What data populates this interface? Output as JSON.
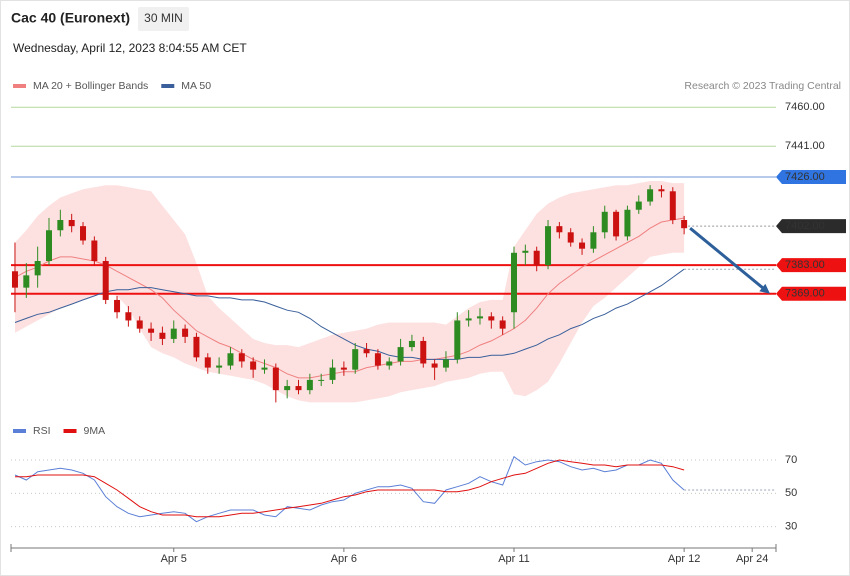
{
  "chart_data": [
    {
      "type": "candlestick",
      "title": "Cac 40 (Euronext)",
      "interval": "30 MIN",
      "subtitle": "Wednesday, April 12, 2023 8:04:55 AM CET",
      "credit": "Research © 2023 Trading Central",
      "x": [
        0,
        1,
        2,
        3,
        4,
        5,
        6,
        7,
        8,
        9,
        10,
        11,
        12,
        13,
        14,
        15,
        16,
        17,
        18,
        19,
        20,
        21,
        22,
        23,
        24,
        25,
        26,
        27,
        28,
        29,
        30,
        31,
        32,
        33,
        34,
        35,
        36,
        37,
        38,
        39,
        40,
        41,
        42,
        43,
        44,
        45,
        46,
        47,
        48,
        49,
        50,
        51,
        52,
        53,
        54,
        55,
        56,
        57,
        58,
        59
      ],
      "xlim": [
        -0.35,
        67.1
      ],
      "ylim": [
        7305,
        7465
      ],
      "up_color": "#2e8b22",
      "down_color": "#cc1111",
      "open": [
        7380,
        7372,
        7378,
        7385,
        7400,
        7405,
        7402,
        7395,
        7385,
        7366,
        7360,
        7356,
        7352,
        7350,
        7347,
        7352,
        7348,
        7338,
        7333,
        7334,
        7340,
        7336,
        7332,
        7333,
        7322,
        7324,
        7322,
        7327,
        7327,
        7333,
        7332,
        7342,
        7340,
        7334,
        7336,
        7343,
        7346,
        7335,
        7333,
        7337,
        7356,
        7357,
        7358,
        7356,
        7360,
        7389,
        7390,
        7383,
        7402,
        7399,
        7394,
        7391,
        7399,
        7409,
        7397,
        7410,
        7414,
        7420,
        7419,
        7405
      ],
      "high": [
        7394,
        7384,
        7392,
        7406,
        7410,
        7408,
        7404,
        7397,
        7387,
        7368,
        7363,
        7358,
        7355,
        7353,
        7356,
        7354,
        7350,
        7340,
        7338,
        7343,
        7342,
        7338,
        7337,
        7335,
        7327,
        7327,
        7330,
        7330,
        7337,
        7336,
        7345,
        7345,
        7342,
        7338,
        7347,
        7349,
        7348,
        7337,
        7341,
        7360,
        7361,
        7362,
        7360,
        7358,
        7392,
        7393,
        7392,
        7405,
        7404,
        7401,
        7396,
        7402,
        7412,
        7410,
        7412,
        7417,
        7422,
        7422,
        7421,
        7407
      ],
      "low": [
        7360,
        7367,
        7372,
        7383,
        7397,
        7399,
        7393,
        7383,
        7364,
        7357,
        7353,
        7350,
        7346,
        7344,
        7345,
        7345,
        7336,
        7330,
        7330,
        7332,
        7333,
        7328,
        7330,
        7316,
        7318,
        7320,
        7320,
        7324,
        7325,
        7329,
        7330,
        7338,
        7332,
        7332,
        7334,
        7341,
        7333,
        7327,
        7331,
        7335,
        7353,
        7354,
        7352,
        7349,
        7352,
        7383,
        7380,
        7381,
        7396,
        7392,
        7388,
        7389,
        7396,
        7395,
        7395,
        7408,
        7412,
        7416,
        7403,
        7398
      ],
      "close": [
        7372,
        7378,
        7385,
        7400,
        7405,
        7402,
        7395,
        7385,
        7366,
        7360,
        7356,
        7352,
        7350,
        7347,
        7352,
        7348,
        7338,
        7333,
        7334,
        7340,
        7336,
        7332,
        7333,
        7322,
        7324,
        7322,
        7327,
        7327,
        7333,
        7332,
        7342,
        7340,
        7334,
        7336,
        7343,
        7346,
        7335,
        7333,
        7337,
        7356,
        7357,
        7358,
        7356,
        7352,
        7389,
        7390,
        7383,
        7402,
        7399,
        7394,
        7391,
        7399,
        7409,
        7397,
        7410,
        7414,
        7420,
        7419,
        7405,
        7401
      ],
      "series": [
        {
          "name": "MA 20 + Bollinger Bands",
          "color": "#f08080",
          "band_color": "#fde1e1",
          "values": [
            7377,
            7380,
            7382,
            7385,
            7387,
            7387,
            7386,
            7385,
            7383,
            7380,
            7377,
            7374,
            7371,
            7367,
            7361,
            7356,
            7351,
            7348,
            7345,
            7343,
            7340,
            7337,
            7335,
            7333,
            7330,
            7328,
            7328,
            7329,
            7330,
            7331,
            7331,
            7333,
            7334,
            7335,
            7336,
            7336,
            7337,
            7337,
            7338,
            7339,
            7341,
            7344,
            7346,
            7349,
            7352,
            7356,
            7362,
            7369,
            7374,
            7378,
            7382,
            7385,
            7388,
            7391,
            7394,
            7397,
            7401,
            7404,
            7405,
            7406
          ],
          "upper": [
            7394,
            7400,
            7407,
            7412,
            7416,
            7418,
            7420,
            7421,
            7422,
            7422,
            7421,
            7420,
            7419,
            7412,
            7405,
            7398,
            7384,
            7368,
            7362,
            7357,
            7352,
            7347,
            7345,
            7344,
            7344,
            7343,
            7345,
            7347,
            7349,
            7350,
            7351,
            7352,
            7354,
            7355,
            7355,
            7355,
            7355,
            7355,
            7354,
            7358,
            7362,
            7365,
            7366,
            7366,
            7392,
            7400,
            7408,
            7413,
            7416,
            7418,
            7419,
            7420,
            7421,
            7422,
            7422,
            7423,
            7424,
            7424,
            7423,
            7423
          ],
          "lower": [
            7350,
            7353,
            7356,
            7359,
            7362,
            7364,
            7366,
            7368,
            7370,
            7368,
            7362,
            7352,
            7343,
            7340,
            7338,
            7335,
            7333,
            7331,
            7330,
            7329,
            7328,
            7327,
            7325,
            7322,
            7319,
            7317,
            7316,
            7316,
            7316,
            7316,
            7316,
            7317,
            7318,
            7319,
            7321,
            7322,
            7323,
            7324,
            7326,
            7327,
            7328,
            7330,
            7331,
            7331,
            7320,
            7319,
            7322,
            7326,
            7335,
            7345,
            7355,
            7363,
            7367,
            7372,
            7377,
            7382,
            7387,
            7388,
            7389,
            7389
          ]
        },
        {
          "name": "MA 50",
          "color": "#3a5f9a",
          "values": [
            7355,
            7357,
            7359,
            7360,
            7362,
            7364,
            7366,
            7368,
            7370,
            7371,
            7371,
            7372,
            7372,
            7371,
            7370,
            7369,
            7368,
            7368,
            7367,
            7367,
            7366,
            7366,
            7365,
            7363,
            7361,
            7360,
            7357,
            7353,
            7350,
            7347,
            7344,
            7342,
            7341,
            7339,
            7338,
            7338,
            7337,
            7337,
            7337,
            7337,
            7338,
            7338,
            7339,
            7339,
            7340,
            7342,
            7344,
            7347,
            7349,
            7352,
            7354,
            7357,
            7359,
            7362,
            7364,
            7367,
            7370,
            7373,
            7377,
            7381
          ]
        }
      ],
      "levels": [
        {
          "value": 7460,
          "label": "7460.00",
          "color": "#6aaa3a",
          "line_color": "#b5d9a0",
          "label_style": "text",
          "line_style": "solid",
          "line_width": 1
        },
        {
          "value": 7441,
          "label": "7441.00",
          "color": "#6aaa3a",
          "line_color": "#b5d9a0",
          "label_style": "text",
          "line_style": "solid",
          "line_width": 1
        },
        {
          "value": 7426,
          "label": "7426.00",
          "color": "#2f74e0",
          "line_color": "#6f95d8",
          "label_style": "box",
          "line_style": "solid",
          "line_width": 1
        },
        {
          "value": 7402,
          "label": "7402.00",
          "color": "#2b2b2b",
          "line_color": "#999999",
          "label_style": "box",
          "line_style": "dotted",
          "line_width": 1
        },
        {
          "value": 7383,
          "label": "7383.00",
          "color": "#ee1111",
          "line_color": "#ee1111",
          "label_style": "box",
          "line_style": "solid",
          "line_width": 2
        },
        {
          "value": 7369,
          "label": "7369.00",
          "color": "#ee1111",
          "line_color": "#ee1111",
          "label_style": "box",
          "line_style": "solid",
          "line_width": 2
        }
      ],
      "arrow_color": "#2d5f9a"
    },
    {
      "type": "line",
      "x": [
        0,
        1,
        2,
        3,
        4,
        5,
        6,
        7,
        8,
        9,
        10,
        11,
        12,
        13,
        14,
        15,
        16,
        17,
        18,
        19,
        20,
        21,
        22,
        23,
        24,
        25,
        26,
        27,
        28,
        29,
        30,
        31,
        32,
        33,
        34,
        35,
        36,
        37,
        38,
        39,
        40,
        41,
        42,
        43,
        44,
        45,
        46,
        47,
        48,
        49,
        50,
        51,
        52,
        53,
        54,
        55,
        56,
        57,
        58,
        59
      ],
      "xlim": [
        -0.35,
        67.1
      ],
      "ylim": [
        22,
        76
      ],
      "yticks": [
        30,
        50,
        70
      ],
      "grid": true,
      "xticks": [
        {
          "value": 14,
          "label": "Apr 5"
        },
        {
          "value": 29,
          "label": "Apr 6"
        },
        {
          "value": 44,
          "label": "Apr 11"
        },
        {
          "value": 59,
          "label": "Apr 12"
        },
        {
          "value": 65,
          "label": "Apr 24"
        }
      ],
      "series": [
        {
          "name": "RSI",
          "color": "#5b7fd6",
          "values": [
            61,
            58,
            63,
            64,
            65,
            64,
            62,
            58,
            48,
            42,
            38,
            36,
            37,
            38,
            39,
            38,
            33,
            36,
            38,
            40,
            40,
            40,
            37,
            36,
            42,
            41,
            40,
            43,
            45,
            46,
            50,
            52,
            54,
            54,
            55,
            53,
            45,
            44,
            52,
            54,
            56,
            60,
            57,
            55,
            72,
            67,
            69,
            70,
            69,
            66,
            64,
            65,
            63,
            64,
            67,
            67,
            70,
            68,
            58,
            52
          ]
        },
        {
          "name": "9MA",
          "color": "#e01010",
          "values": [
            60,
            60,
            61,
            61,
            61,
            61,
            61,
            60,
            56,
            52,
            47,
            42,
            39,
            37,
            37,
            37,
            36,
            36,
            36,
            37,
            38,
            38,
            39,
            40,
            41,
            42,
            43,
            44,
            46,
            48,
            49,
            51,
            52,
            52,
            52,
            52,
            52,
            52,
            51,
            51,
            52,
            54,
            57,
            59,
            61,
            62,
            65,
            68,
            70,
            69,
            68,
            67,
            67,
            66,
            67,
            67,
            67,
            67,
            66,
            64
          ]
        }
      ]
    }
  ]
}
